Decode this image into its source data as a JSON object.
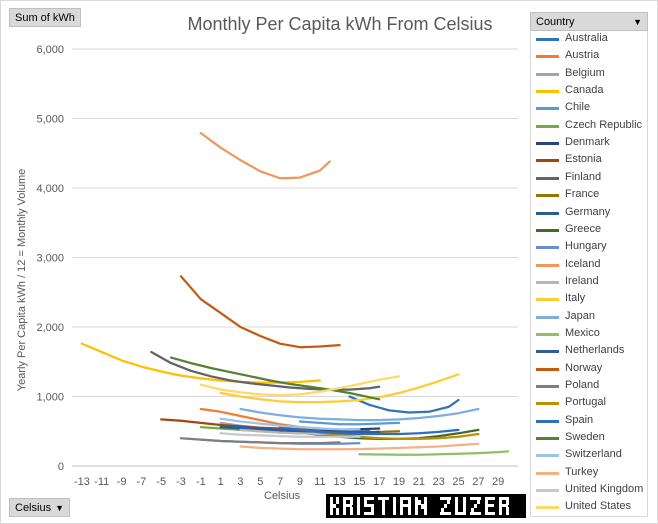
{
  "field_buttons": {
    "values": "Sum of kWh",
    "axis": "Celsius",
    "legend": "Country"
  },
  "chart_data": {
    "type": "line",
    "title": "Monthly Per Capita kWh From Celsius",
    "xlabel": "Celsius",
    "ylabel": "Yearly Per Capita kWh / 12 = Monthly Volume",
    "xlim": [
      -14,
      31
    ],
    "ylim": [
      0,
      6000
    ],
    "yticks": [
      0,
      1000,
      2000,
      3000,
      4000,
      5000,
      6000
    ],
    "ytick_labels": [
      "0",
      "1,000",
      "2,000",
      "3,000",
      "4,000",
      "5,000",
      "6,000"
    ],
    "xticks": [
      -13,
      -11,
      -9,
      -7,
      -5,
      -3,
      -1,
      1,
      3,
      5,
      7,
      9,
      11,
      13,
      15,
      17,
      19,
      21,
      23,
      25,
      27,
      29
    ],
    "grid": true,
    "legend_position": "right",
    "series": [
      {
        "name": "Australia",
        "color": "#2e75b6",
        "points": [
          [
            14,
            1000
          ],
          [
            16,
            880
          ],
          [
            18,
            800
          ],
          [
            20,
            770
          ],
          [
            22,
            780
          ],
          [
            24,
            850
          ],
          [
            25,
            950
          ]
        ]
      },
      {
        "name": "Austria",
        "color": "#ed7d31",
        "points": [
          [
            -1,
            820
          ],
          [
            1,
            780
          ],
          [
            3,
            720
          ],
          [
            5,
            660
          ],
          [
            7,
            600
          ],
          [
            9,
            560
          ],
          [
            11,
            540
          ]
        ]
      },
      {
        "name": "Belgium",
        "color": "#a5a5a5",
        "points": [
          [
            1,
            620
          ],
          [
            3,
            580
          ],
          [
            5,
            550
          ],
          [
            7,
            520
          ],
          [
            9,
            500
          ],
          [
            11,
            490
          ],
          [
            13,
            480
          ],
          [
            15,
            480
          ]
        ]
      },
      {
        "name": "Canada",
        "color": "#ffc000",
        "points": [
          [
            -13,
            1760
          ],
          [
            -11,
            1640
          ],
          [
            -9,
            1520
          ],
          [
            -7,
            1430
          ],
          [
            -5,
            1360
          ],
          [
            -3,
            1300
          ],
          [
            -1,
            1260
          ],
          [
            1,
            1230
          ],
          [
            3,
            1210
          ],
          [
            5,
            1200
          ],
          [
            7,
            1200
          ],
          [
            9,
            1210
          ],
          [
            11,
            1230
          ]
        ]
      },
      {
        "name": "Chile",
        "color": "#5b9bd5",
        "points": [
          [
            9,
            640
          ],
          [
            11,
            620
          ],
          [
            13,
            600
          ],
          [
            15,
            600
          ],
          [
            17,
            610
          ],
          [
            19,
            620
          ]
        ]
      },
      {
        "name": "Czech Republic",
        "color": "#70ad47",
        "points": [
          [
            -1,
            560
          ],
          [
            1,
            540
          ],
          [
            3,
            520
          ],
          [
            5,
            500
          ],
          [
            7,
            480
          ],
          [
            9,
            470
          ],
          [
            11,
            470
          ]
        ]
      },
      {
        "name": "Denmark",
        "color": "#264478",
        "points": [
          [
            1,
            560
          ],
          [
            3,
            550
          ],
          [
            5,
            540
          ],
          [
            7,
            530
          ],
          [
            9,
            520
          ],
          [
            11,
            520
          ],
          [
            13,
            520
          ],
          [
            15,
            530
          ],
          [
            17,
            540
          ]
        ]
      },
      {
        "name": "Estonia",
        "color": "#9e480e",
        "points": [
          [
            -5,
            670
          ],
          [
            -3,
            650
          ],
          [
            -1,
            620
          ],
          [
            1,
            590
          ],
          [
            3,
            570
          ],
          [
            5,
            550
          ],
          [
            7,
            540
          ],
          [
            9,
            530
          ],
          [
            11,
            530
          ]
        ]
      },
      {
        "name": "Finland",
        "color": "#636363",
        "points": [
          [
            -6,
            1640
          ],
          [
            -4,
            1480
          ],
          [
            -2,
            1370
          ],
          [
            0,
            1290
          ],
          [
            2,
            1230
          ],
          [
            4,
            1190
          ],
          [
            6,
            1160
          ],
          [
            8,
            1130
          ],
          [
            10,
            1110
          ],
          [
            12,
            1100
          ],
          [
            14,
            1100
          ],
          [
            16,
            1120
          ],
          [
            17,
            1140
          ]
        ]
      },
      {
        "name": "France",
        "color": "#997300",
        "points": [
          [
            3,
            560
          ],
          [
            5,
            540
          ],
          [
            7,
            520
          ],
          [
            9,
            500
          ],
          [
            11,
            490
          ],
          [
            13,
            480
          ],
          [
            15,
            480
          ],
          [
            17,
            490
          ],
          [
            19,
            500
          ]
        ]
      },
      {
        "name": "Germany",
        "color": "#255e91",
        "points": [
          [
            1,
            560
          ],
          [
            3,
            540
          ],
          [
            5,
            520
          ],
          [
            7,
            500
          ],
          [
            9,
            490
          ],
          [
            11,
            480
          ],
          [
            13,
            480
          ],
          [
            15,
            480
          ],
          [
            17,
            490
          ]
        ]
      },
      {
        "name": "Greece",
        "color": "#43682b",
        "points": [
          [
            9,
            480
          ],
          [
            11,
            450
          ],
          [
            13,
            420
          ],
          [
            15,
            400
          ],
          [
            17,
            390
          ],
          [
            19,
            390
          ],
          [
            21,
            400
          ],
          [
            23,
            430
          ],
          [
            25,
            470
          ],
          [
            27,
            520
          ]
        ]
      },
      {
        "name": "Hungary",
        "color": "#698ed0",
        "points": [
          [
            -1,
            380
          ],
          [
            1,
            360
          ],
          [
            3,
            350
          ],
          [
            5,
            340
          ],
          [
            7,
            330
          ],
          [
            9,
            320
          ],
          [
            11,
            320
          ],
          [
            13,
            320
          ],
          [
            15,
            330
          ]
        ]
      },
      {
        "name": "Iceland",
        "color": "#f1975a",
        "points": [
          [
            -1,
            4790
          ],
          [
            1,
            4580
          ],
          [
            3,
            4400
          ],
          [
            5,
            4240
          ],
          [
            7,
            4140
          ],
          [
            9,
            4150
          ],
          [
            11,
            4250
          ],
          [
            12,
            4380
          ]
        ]
      },
      {
        "name": "Ireland",
        "color": "#b7b7b7",
        "points": [
          [
            3,
            520
          ],
          [
            5,
            500
          ],
          [
            7,
            480
          ],
          [
            9,
            470
          ],
          [
            11,
            460
          ],
          [
            13,
            460
          ],
          [
            15,
            460
          ]
        ]
      },
      {
        "name": "Italy",
        "color": "#ffcd33",
        "points": [
          [
            1,
            1050
          ],
          [
            3,
            1000
          ],
          [
            5,
            960
          ],
          [
            7,
            930
          ],
          [
            9,
            920
          ],
          [
            11,
            920
          ],
          [
            13,
            930
          ],
          [
            15,
            950
          ],
          [
            17,
            990
          ],
          [
            19,
            1050
          ],
          [
            21,
            1130
          ],
          [
            23,
            1220
          ],
          [
            25,
            1320
          ]
        ]
      },
      {
        "name": "Japan",
        "color": "#7cafdd",
        "points": [
          [
            3,
            820
          ],
          [
            5,
            770
          ],
          [
            7,
            730
          ],
          [
            9,
            700
          ],
          [
            11,
            680
          ],
          [
            13,
            670
          ],
          [
            15,
            660
          ],
          [
            17,
            660
          ],
          [
            19,
            670
          ],
          [
            21,
            690
          ],
          [
            23,
            720
          ],
          [
            25,
            760
          ],
          [
            27,
            820
          ]
        ]
      },
      {
        "name": "Mexico",
        "color": "#8cc168",
        "points": [
          [
            15,
            170
          ],
          [
            17,
            165
          ],
          [
            19,
            162
          ],
          [
            21,
            162
          ],
          [
            23,
            168
          ],
          [
            25,
            175
          ],
          [
            27,
            185
          ],
          [
            29,
            200
          ],
          [
            30,
            210
          ]
        ]
      },
      {
        "name": "Netherlands",
        "color": "#335aa1",
        "points": [
          [
            2,
            570
          ],
          [
            4,
            550
          ],
          [
            6,
            530
          ],
          [
            8,
            510
          ],
          [
            10,
            500
          ],
          [
            12,
            490
          ],
          [
            14,
            490
          ],
          [
            16,
            500
          ]
        ]
      },
      {
        "name": "Norway",
        "color": "#c55a11",
        "points": [
          [
            -3,
            2730
          ],
          [
            -1,
            2400
          ],
          [
            1,
            2200
          ],
          [
            3,
            2000
          ],
          [
            5,
            1870
          ],
          [
            7,
            1760
          ],
          [
            9,
            1710
          ],
          [
            11,
            1720
          ],
          [
            13,
            1740
          ]
        ]
      },
      {
        "name": "Poland",
        "color": "#7f7f7f",
        "points": [
          [
            -3,
            400
          ],
          [
            -1,
            380
          ],
          [
            1,
            360
          ],
          [
            3,
            350
          ],
          [
            5,
            340
          ],
          [
            7,
            330
          ],
          [
            9,
            330
          ],
          [
            11,
            330
          ],
          [
            13,
            340
          ]
        ]
      },
      {
        "name": "Portugal",
        "color": "#bf9000",
        "points": [
          [
            11,
            480
          ],
          [
            13,
            450
          ],
          [
            15,
            420
          ],
          [
            17,
            400
          ],
          [
            19,
            390
          ],
          [
            21,
            390
          ],
          [
            23,
            400
          ],
          [
            25,
            420
          ],
          [
            27,
            460
          ]
        ]
      },
      {
        "name": "Spain",
        "color": "#2f6eba",
        "points": [
          [
            7,
            560
          ],
          [
            9,
            520
          ],
          [
            11,
            490
          ],
          [
            13,
            470
          ],
          [
            15,
            460
          ],
          [
            17,
            460
          ],
          [
            19,
            460
          ],
          [
            21,
            470
          ],
          [
            23,
            490
          ],
          [
            25,
            520
          ]
        ]
      },
      {
        "name": "Sweden",
        "color": "#548235",
        "points": [
          [
            -4,
            1560
          ],
          [
            -2,
            1480
          ],
          [
            0,
            1410
          ],
          [
            2,
            1350
          ],
          [
            4,
            1290
          ],
          [
            6,
            1230
          ],
          [
            8,
            1180
          ],
          [
            10,
            1140
          ],
          [
            12,
            1100
          ],
          [
            14,
            1050
          ],
          [
            16,
            990
          ],
          [
            17,
            960
          ]
        ]
      },
      {
        "name": "Switzerland",
        "color": "#9dc3e6",
        "points": [
          [
            1,
            680
          ],
          [
            3,
            640
          ],
          [
            5,
            610
          ],
          [
            7,
            580
          ],
          [
            9,
            560
          ],
          [
            11,
            540
          ],
          [
            13,
            530
          ],
          [
            15,
            530
          ]
        ]
      },
      {
        "name": "Turkey",
        "color": "#f4b183",
        "points": [
          [
            3,
            280
          ],
          [
            5,
            260
          ],
          [
            7,
            250
          ],
          [
            9,
            240
          ],
          [
            11,
            240
          ],
          [
            13,
            240
          ],
          [
            15,
            245
          ],
          [
            17,
            250
          ],
          [
            19,
            260
          ],
          [
            21,
            270
          ],
          [
            23,
            280
          ],
          [
            25,
            300
          ],
          [
            27,
            320
          ]
        ]
      },
      {
        "name": "United Kingdom",
        "color": "#c9c9c9",
        "points": [
          [
            1,
            470
          ],
          [
            3,
            450
          ],
          [
            5,
            440
          ],
          [
            7,
            430
          ],
          [
            9,
            420
          ],
          [
            11,
            420
          ],
          [
            13,
            420
          ],
          [
            15,
            420
          ]
        ]
      },
      {
        "name": "United States",
        "color": "#ffd966",
        "points": [
          [
            -1,
            1170
          ],
          [
            1,
            1100
          ],
          [
            3,
            1060
          ],
          [
            5,
            1030
          ],
          [
            7,
            1020
          ],
          [
            9,
            1030
          ],
          [
            11,
            1070
          ],
          [
            13,
            1120
          ],
          [
            15,
            1180
          ],
          [
            17,
            1240
          ],
          [
            19,
            1290
          ]
        ]
      }
    ]
  }
}
